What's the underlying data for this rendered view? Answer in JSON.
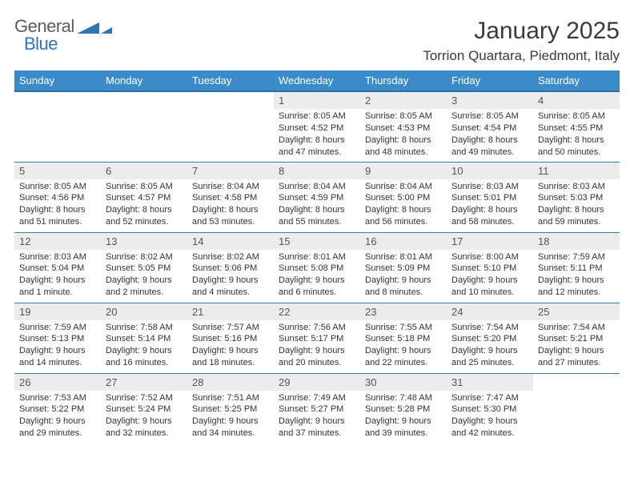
{
  "brand": {
    "word1": "General",
    "word2": "Blue",
    "word1_color": "#5c5c5c",
    "word2_color": "#2e75b6",
    "triangle_color": "#2e75b6"
  },
  "title": "January 2025",
  "location": "Torrion Quartara, Piedmont, Italy",
  "colors": {
    "header_bg": "#3b8bc8",
    "header_text": "#ffffff",
    "row_divider": "#3b7db0",
    "daynum_bg": "#ececec",
    "body_text": "#333333",
    "page_bg": "#ffffff"
  },
  "weekdays": [
    "Sunday",
    "Monday",
    "Tuesday",
    "Wednesday",
    "Thursday",
    "Friday",
    "Saturday"
  ],
  "weeks": [
    [
      null,
      null,
      null,
      {
        "n": "1",
        "sunrise": "Sunrise: 8:05 AM",
        "sunset": "Sunset: 4:52 PM",
        "day1": "Daylight: 8 hours",
        "day2": "and 47 minutes."
      },
      {
        "n": "2",
        "sunrise": "Sunrise: 8:05 AM",
        "sunset": "Sunset: 4:53 PM",
        "day1": "Daylight: 8 hours",
        "day2": "and 48 minutes."
      },
      {
        "n": "3",
        "sunrise": "Sunrise: 8:05 AM",
        "sunset": "Sunset: 4:54 PM",
        "day1": "Daylight: 8 hours",
        "day2": "and 49 minutes."
      },
      {
        "n": "4",
        "sunrise": "Sunrise: 8:05 AM",
        "sunset": "Sunset: 4:55 PM",
        "day1": "Daylight: 8 hours",
        "day2": "and 50 minutes."
      }
    ],
    [
      {
        "n": "5",
        "sunrise": "Sunrise: 8:05 AM",
        "sunset": "Sunset: 4:56 PM",
        "day1": "Daylight: 8 hours",
        "day2": "and 51 minutes."
      },
      {
        "n": "6",
        "sunrise": "Sunrise: 8:05 AM",
        "sunset": "Sunset: 4:57 PM",
        "day1": "Daylight: 8 hours",
        "day2": "and 52 minutes."
      },
      {
        "n": "7",
        "sunrise": "Sunrise: 8:04 AM",
        "sunset": "Sunset: 4:58 PM",
        "day1": "Daylight: 8 hours",
        "day2": "and 53 minutes."
      },
      {
        "n": "8",
        "sunrise": "Sunrise: 8:04 AM",
        "sunset": "Sunset: 4:59 PM",
        "day1": "Daylight: 8 hours",
        "day2": "and 55 minutes."
      },
      {
        "n": "9",
        "sunrise": "Sunrise: 8:04 AM",
        "sunset": "Sunset: 5:00 PM",
        "day1": "Daylight: 8 hours",
        "day2": "and 56 minutes."
      },
      {
        "n": "10",
        "sunrise": "Sunrise: 8:03 AM",
        "sunset": "Sunset: 5:01 PM",
        "day1": "Daylight: 8 hours",
        "day2": "and 58 minutes."
      },
      {
        "n": "11",
        "sunrise": "Sunrise: 8:03 AM",
        "sunset": "Sunset: 5:03 PM",
        "day1": "Daylight: 8 hours",
        "day2": "and 59 minutes."
      }
    ],
    [
      {
        "n": "12",
        "sunrise": "Sunrise: 8:03 AM",
        "sunset": "Sunset: 5:04 PM",
        "day1": "Daylight: 9 hours",
        "day2": "and 1 minute."
      },
      {
        "n": "13",
        "sunrise": "Sunrise: 8:02 AM",
        "sunset": "Sunset: 5:05 PM",
        "day1": "Daylight: 9 hours",
        "day2": "and 2 minutes."
      },
      {
        "n": "14",
        "sunrise": "Sunrise: 8:02 AM",
        "sunset": "Sunset: 5:06 PM",
        "day1": "Daylight: 9 hours",
        "day2": "and 4 minutes."
      },
      {
        "n": "15",
        "sunrise": "Sunrise: 8:01 AM",
        "sunset": "Sunset: 5:08 PM",
        "day1": "Daylight: 9 hours",
        "day2": "and 6 minutes."
      },
      {
        "n": "16",
        "sunrise": "Sunrise: 8:01 AM",
        "sunset": "Sunset: 5:09 PM",
        "day1": "Daylight: 9 hours",
        "day2": "and 8 minutes."
      },
      {
        "n": "17",
        "sunrise": "Sunrise: 8:00 AM",
        "sunset": "Sunset: 5:10 PM",
        "day1": "Daylight: 9 hours",
        "day2": "and 10 minutes."
      },
      {
        "n": "18",
        "sunrise": "Sunrise: 7:59 AM",
        "sunset": "Sunset: 5:11 PM",
        "day1": "Daylight: 9 hours",
        "day2": "and 12 minutes."
      }
    ],
    [
      {
        "n": "19",
        "sunrise": "Sunrise: 7:59 AM",
        "sunset": "Sunset: 5:13 PM",
        "day1": "Daylight: 9 hours",
        "day2": "and 14 minutes."
      },
      {
        "n": "20",
        "sunrise": "Sunrise: 7:58 AM",
        "sunset": "Sunset: 5:14 PM",
        "day1": "Daylight: 9 hours",
        "day2": "and 16 minutes."
      },
      {
        "n": "21",
        "sunrise": "Sunrise: 7:57 AM",
        "sunset": "Sunset: 5:16 PM",
        "day1": "Daylight: 9 hours",
        "day2": "and 18 minutes."
      },
      {
        "n": "22",
        "sunrise": "Sunrise: 7:56 AM",
        "sunset": "Sunset: 5:17 PM",
        "day1": "Daylight: 9 hours",
        "day2": "and 20 minutes."
      },
      {
        "n": "23",
        "sunrise": "Sunrise: 7:55 AM",
        "sunset": "Sunset: 5:18 PM",
        "day1": "Daylight: 9 hours",
        "day2": "and 22 minutes."
      },
      {
        "n": "24",
        "sunrise": "Sunrise: 7:54 AM",
        "sunset": "Sunset: 5:20 PM",
        "day1": "Daylight: 9 hours",
        "day2": "and 25 minutes."
      },
      {
        "n": "25",
        "sunrise": "Sunrise: 7:54 AM",
        "sunset": "Sunset: 5:21 PM",
        "day1": "Daylight: 9 hours",
        "day2": "and 27 minutes."
      }
    ],
    [
      {
        "n": "26",
        "sunrise": "Sunrise: 7:53 AM",
        "sunset": "Sunset: 5:22 PM",
        "day1": "Daylight: 9 hours",
        "day2": "and 29 minutes."
      },
      {
        "n": "27",
        "sunrise": "Sunrise: 7:52 AM",
        "sunset": "Sunset: 5:24 PM",
        "day1": "Daylight: 9 hours",
        "day2": "and 32 minutes."
      },
      {
        "n": "28",
        "sunrise": "Sunrise: 7:51 AM",
        "sunset": "Sunset: 5:25 PM",
        "day1": "Daylight: 9 hours",
        "day2": "and 34 minutes."
      },
      {
        "n": "29",
        "sunrise": "Sunrise: 7:49 AM",
        "sunset": "Sunset: 5:27 PM",
        "day1": "Daylight: 9 hours",
        "day2": "and 37 minutes."
      },
      {
        "n": "30",
        "sunrise": "Sunrise: 7:48 AM",
        "sunset": "Sunset: 5:28 PM",
        "day1": "Daylight: 9 hours",
        "day2": "and 39 minutes."
      },
      {
        "n": "31",
        "sunrise": "Sunrise: 7:47 AM",
        "sunset": "Sunset: 5:30 PM",
        "day1": "Daylight: 9 hours",
        "day2": "and 42 minutes."
      },
      null
    ]
  ]
}
